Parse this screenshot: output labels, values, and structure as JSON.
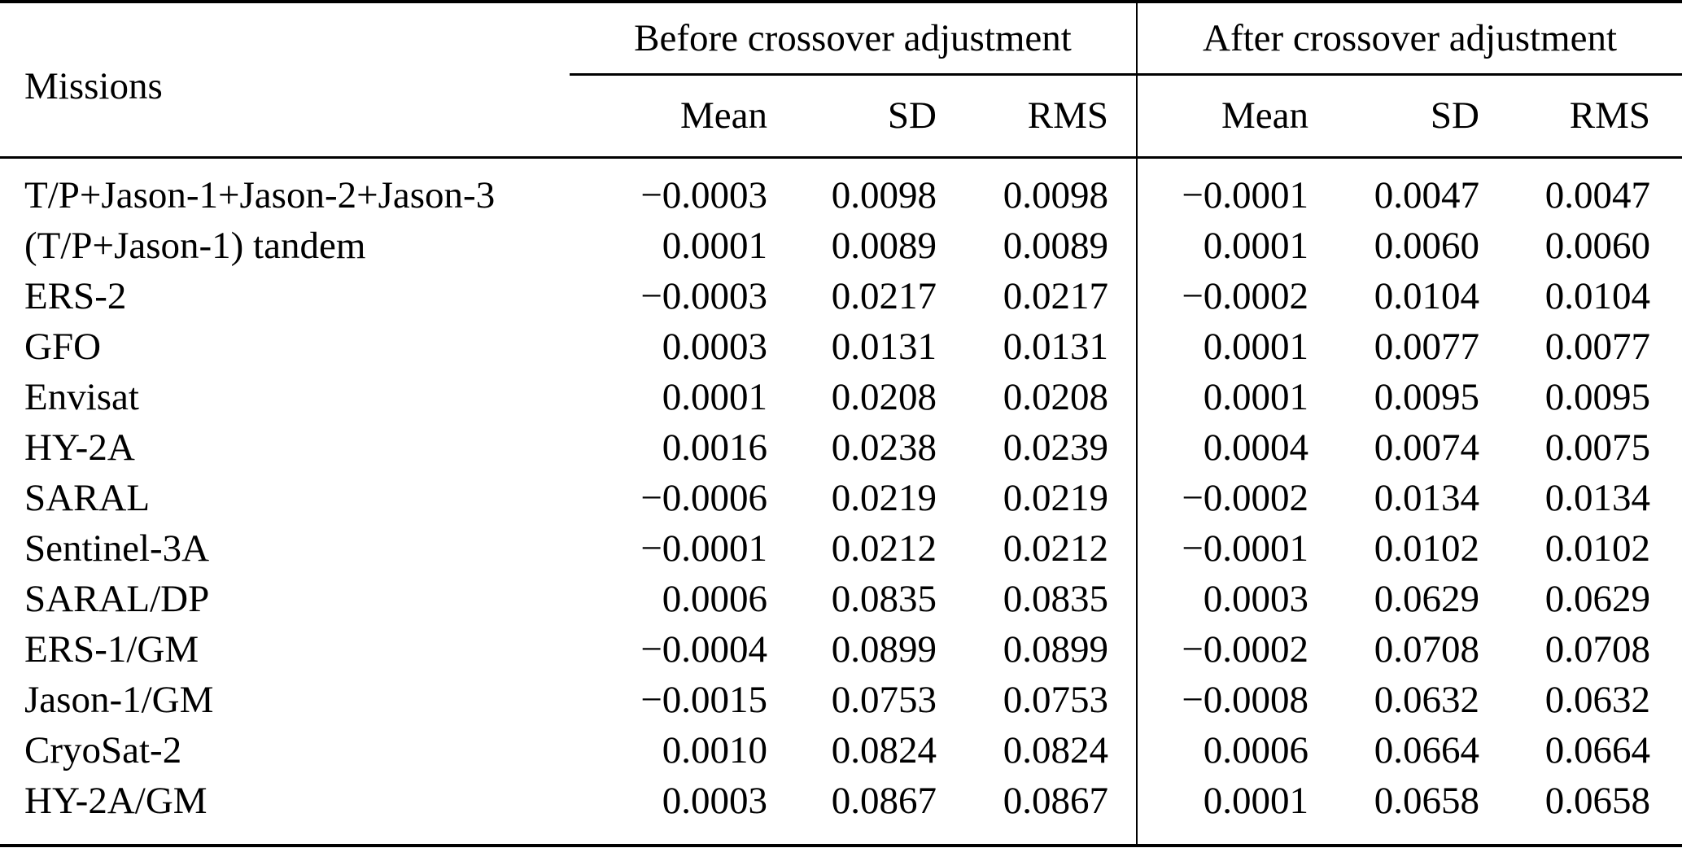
{
  "page": {
    "background_color": "#ffffff",
    "text_color": "#000000",
    "rule_color": "#000000"
  },
  "table": {
    "header": {
      "missions_label": "Missions",
      "group_before": "Before crossover adjustment",
      "group_after": "After crossover adjustment",
      "sub": [
        "Mean",
        "SD",
        "RMS"
      ]
    },
    "rows": [
      {
        "mission": "T/P+Jason-1+Jason-2+Jason-3",
        "before": {
          "mean": "−0.0003",
          "sd": "0.0098",
          "rms": "0.0098"
        },
        "after": {
          "mean": "−0.0001",
          "sd": "0.0047",
          "rms": "0.0047"
        }
      },
      {
        "mission": "(T/P+Jason-1) tandem",
        "before": {
          "mean": "0.0001",
          "sd": "0.0089",
          "rms": "0.0089"
        },
        "after": {
          "mean": "0.0001",
          "sd": "0.0060",
          "rms": "0.0060"
        }
      },
      {
        "mission": "ERS-2",
        "before": {
          "mean": "−0.0003",
          "sd": "0.0217",
          "rms": "0.0217"
        },
        "after": {
          "mean": "−0.0002",
          "sd": "0.0104",
          "rms": "0.0104"
        }
      },
      {
        "mission": "GFO",
        "before": {
          "mean": "0.0003",
          "sd": "0.0131",
          "rms": "0.0131"
        },
        "after": {
          "mean": "0.0001",
          "sd": "0.0077",
          "rms": "0.0077"
        }
      },
      {
        "mission": "Envisat",
        "before": {
          "mean": "0.0001",
          "sd": "0.0208",
          "rms": "0.0208"
        },
        "after": {
          "mean": "0.0001",
          "sd": "0.0095",
          "rms": "0.0095"
        }
      },
      {
        "mission": "HY-2A",
        "before": {
          "mean": "0.0016",
          "sd": "0.0238",
          "rms": "0.0239"
        },
        "after": {
          "mean": "0.0004",
          "sd": "0.0074",
          "rms": "0.0075"
        }
      },
      {
        "mission": "SARAL",
        "before": {
          "mean": "−0.0006",
          "sd": "0.0219",
          "rms": "0.0219"
        },
        "after": {
          "mean": "−0.0002",
          "sd": "0.0134",
          "rms": "0.0134"
        }
      },
      {
        "mission": "Sentinel-3A",
        "before": {
          "mean": "−0.0001",
          "sd": "0.0212",
          "rms": "0.0212"
        },
        "after": {
          "mean": "−0.0001",
          "sd": "0.0102",
          "rms": "0.0102"
        }
      },
      {
        "mission": "SARAL/DP",
        "before": {
          "mean": "0.0006",
          "sd": "0.0835",
          "rms": "0.0835"
        },
        "after": {
          "mean": "0.0003",
          "sd": "0.0629",
          "rms": "0.0629"
        }
      },
      {
        "mission": "ERS-1/GM",
        "before": {
          "mean": "−0.0004",
          "sd": "0.0899",
          "rms": "0.0899"
        },
        "after": {
          "mean": "−0.0002",
          "sd": "0.0708",
          "rms": "0.0708"
        }
      },
      {
        "mission": "Jason-1/GM",
        "before": {
          "mean": "−0.0015",
          "sd": "0.0753",
          "rms": "0.0753"
        },
        "after": {
          "mean": "−0.0008",
          "sd": "0.0632",
          "rms": "0.0632"
        }
      },
      {
        "mission": "CryoSat-2",
        "before": {
          "mean": "0.0010",
          "sd": "0.0824",
          "rms": "0.0824"
        },
        "after": {
          "mean": "0.0006",
          "sd": "0.0664",
          "rms": "0.0664"
        }
      },
      {
        "mission": "HY-2A/GM",
        "before": {
          "mean": "0.0003",
          "sd": "0.0867",
          "rms": "0.0867"
        },
        "after": {
          "mean": "0.0001",
          "sd": "0.0658",
          "rms": "0.0658"
        }
      }
    ]
  }
}
